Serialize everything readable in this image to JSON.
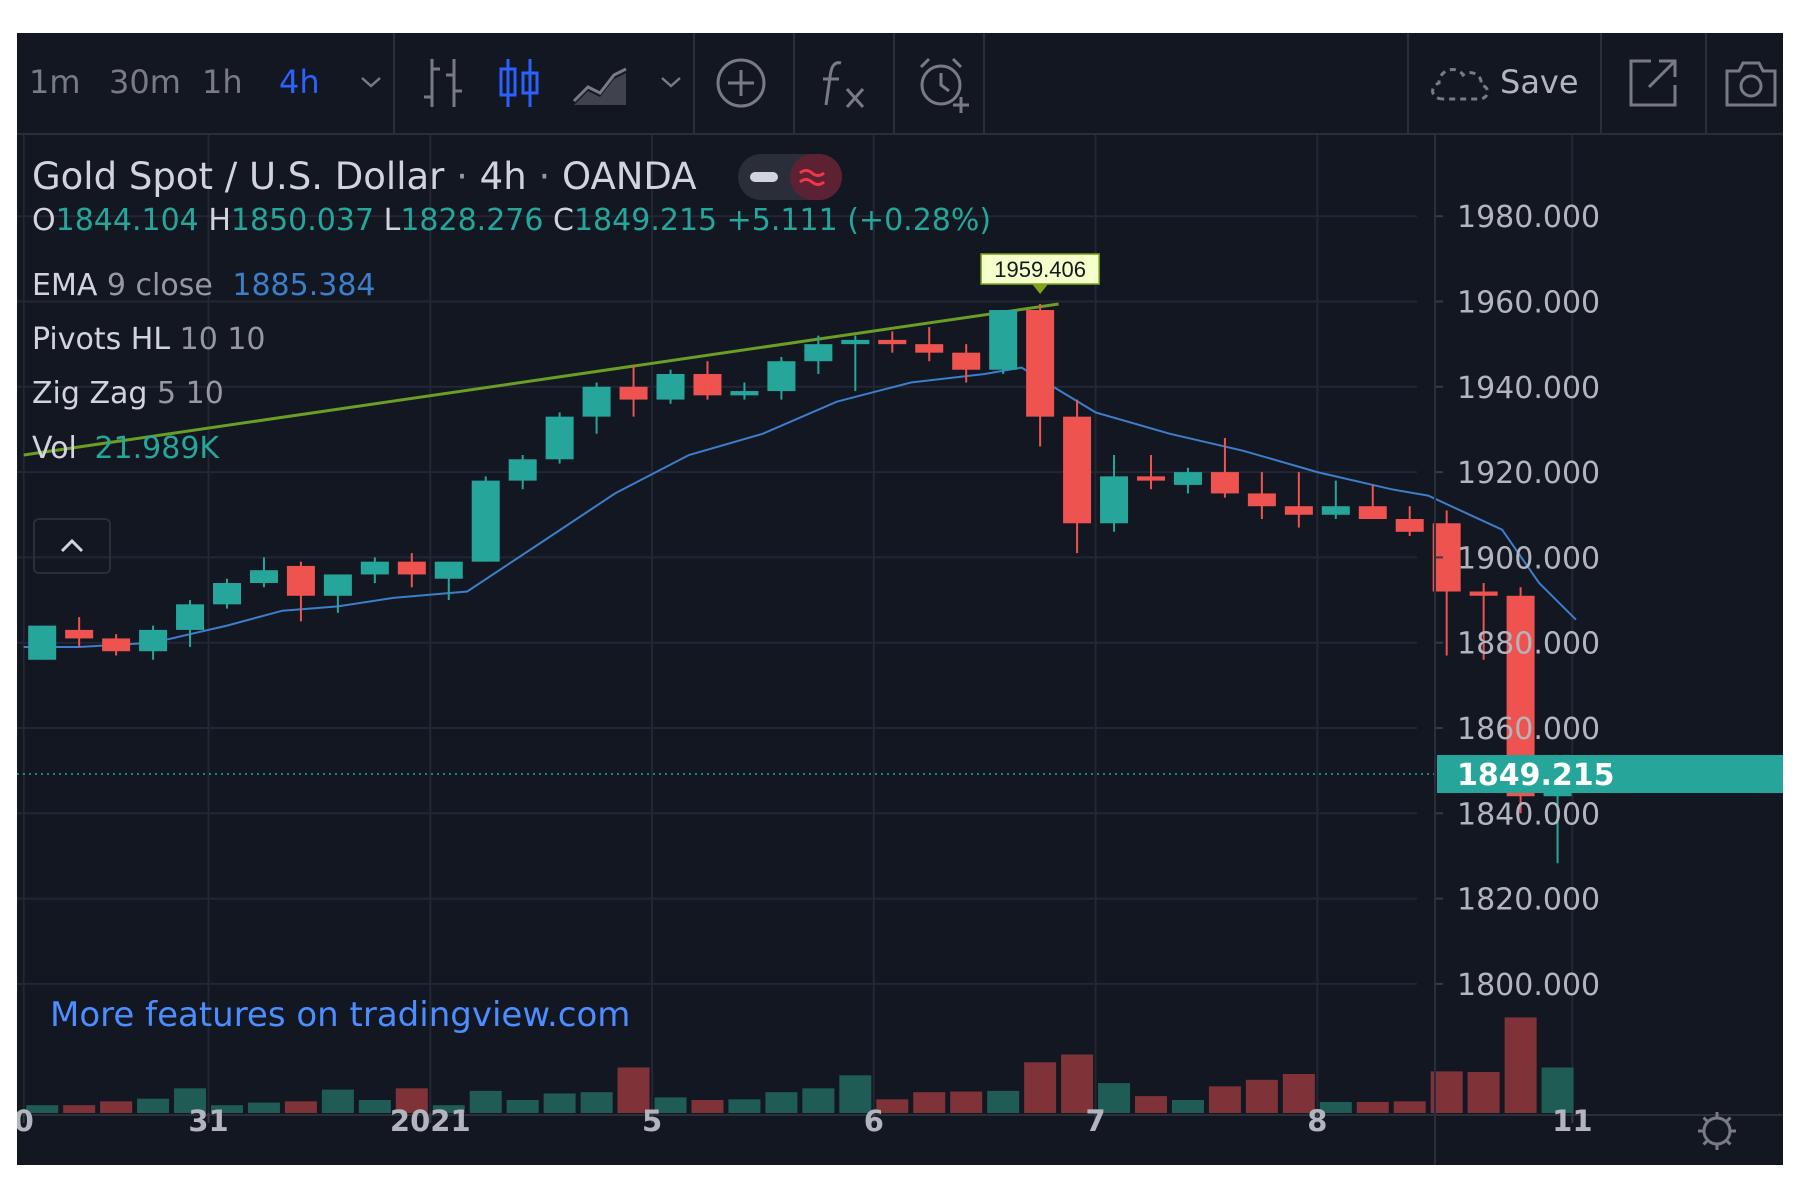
{
  "toolbar": {
    "intervals": [
      "1m",
      "30m",
      "1h",
      "4h"
    ],
    "active_interval": "4h",
    "save_label": "Save"
  },
  "symbol": {
    "name": "Gold Spot / U.S. Dollar",
    "interval": "4h",
    "exchange": "OANDA",
    "sep": "·"
  },
  "ohlc": {
    "o_label": "O",
    "o": "1844.104",
    "h_label": "H",
    "h": "1850.037",
    "l_label": "L",
    "l": "1828.276",
    "c_label": "C",
    "c": "1849.215",
    "change": "+5.111 (+0.28%)"
  },
  "indicators": {
    "ema": {
      "name": "EMA",
      "params": "9 close",
      "value": "1885.384"
    },
    "pivots": {
      "name": "Pivots HL",
      "params": "10 10"
    },
    "zigzag": {
      "name": "Zig Zag",
      "params": "5 10"
    },
    "vol": {
      "name": "Vol",
      "value": "21.989K"
    }
  },
  "promo_link": "More features on tradingview.com",
  "colors": {
    "background": "#131722",
    "grid": "#232734",
    "up": "#26a69a",
    "down": "#ef5350",
    "vol_up": "#1e5c55",
    "vol_down": "#7f3338",
    "ema": "#3c7ec9",
    "trendline": "#6a9e25",
    "text": "#d1d4dc",
    "muted": "#787b86",
    "accent": "#2962ff"
  },
  "chart_data": {
    "type": "candlestick",
    "ylim": [
      1800,
      1985
    ],
    "y_ticks": [
      "1800.000",
      "1820.000",
      "1840.000",
      "1860.000",
      "1880.000",
      "1900.000",
      "1920.000",
      "1940.000",
      "1960.000",
      "1980.000"
    ],
    "x_ticks": [
      {
        "label": "0",
        "bar": -0.5
      },
      {
        "label": "31",
        "bar": 4.5
      },
      {
        "label": "2021",
        "bar": 10.5
      },
      {
        "label": "5",
        "bar": 16.5
      },
      {
        "label": "6",
        "bar": 22.5
      },
      {
        "label": "7",
        "bar": 28.5
      },
      {
        "label": "8",
        "bar": 34.5
      },
      {
        "label": "11",
        "bar": 41.4
      }
    ],
    "candles": [
      {
        "o": 1876,
        "h": 1884,
        "l": 1876,
        "c": 1884
      },
      {
        "o": 1883,
        "h": 1886,
        "l": 1879,
        "c": 1881
      },
      {
        "o": 1881,
        "h": 1882,
        "l": 1877,
        "c": 1878
      },
      {
        "o": 1878,
        "h": 1884,
        "l": 1876,
        "c": 1883
      },
      {
        "o": 1883,
        "h": 1890,
        "l": 1879,
        "c": 1889
      },
      {
        "o": 1889,
        "h": 1895,
        "l": 1888,
        "c": 1894
      },
      {
        "o": 1894,
        "h": 1900,
        "l": 1893,
        "c": 1897
      },
      {
        "o": 1898,
        "h": 1899,
        "l": 1885,
        "c": 1891
      },
      {
        "o": 1891,
        "h": 1896,
        "l": 1887,
        "c": 1896
      },
      {
        "o": 1896,
        "h": 1900,
        "l": 1894,
        "c": 1899
      },
      {
        "o": 1899,
        "h": 1901,
        "l": 1893,
        "c": 1896
      },
      {
        "o": 1895,
        "h": 1898,
        "l": 1890,
        "c": 1899
      },
      {
        "o": 1899,
        "h": 1919,
        "l": 1899,
        "c": 1918
      },
      {
        "o": 1918,
        "h": 1924,
        "l": 1916,
        "c": 1923
      },
      {
        "o": 1923,
        "h": 1934,
        "l": 1922,
        "c": 1933
      },
      {
        "o": 1933,
        "h": 1941,
        "l": 1929,
        "c": 1940
      },
      {
        "o": 1940,
        "h": 1945,
        "l": 1933,
        "c": 1937
      },
      {
        "o": 1937,
        "h": 1944,
        "l": 1936,
        "c": 1943
      },
      {
        "o": 1943,
        "h": 1946,
        "l": 1937,
        "c": 1938
      },
      {
        "o": 1938,
        "h": 1941,
        "l": 1937,
        "c": 1939
      },
      {
        "o": 1939,
        "h": 1947,
        "l": 1937,
        "c": 1946
      },
      {
        "o": 1946,
        "h": 1952,
        "l": 1943,
        "c": 1950
      },
      {
        "o": 1950,
        "h": 1952,
        "l": 1939,
        "c": 1951
      },
      {
        "o": 1951,
        "h": 1953,
        "l": 1948,
        "c": 1950
      },
      {
        "o": 1950,
        "h": 1954,
        "l": 1946,
        "c": 1948
      },
      {
        "o": 1948,
        "h": 1950,
        "l": 1941,
        "c": 1944
      },
      {
        "o": 1944,
        "h": 1958,
        "l": 1943,
        "c": 1958
      },
      {
        "o": 1958,
        "h": 1959.406,
        "l": 1926,
        "c": 1933
      },
      {
        "o": 1933,
        "h": 1937,
        "l": 1901,
        "c": 1908
      },
      {
        "o": 1908,
        "h": 1924,
        "l": 1906,
        "c": 1919
      },
      {
        "o": 1919,
        "h": 1924,
        "l": 1916,
        "c": 1918
      },
      {
        "o": 1917,
        "h": 1921,
        "l": 1915,
        "c": 1920
      },
      {
        "o": 1920,
        "h": 1928,
        "l": 1914,
        "c": 1915
      },
      {
        "o": 1915,
        "h": 1920,
        "l": 1909,
        "c": 1912
      },
      {
        "o": 1912,
        "h": 1920,
        "l": 1907,
        "c": 1910
      },
      {
        "o": 1910,
        "h": 1918,
        "l": 1909,
        "c": 1912
      },
      {
        "o": 1912,
        "h": 1917,
        "l": 1909,
        "c": 1909
      },
      {
        "o": 1909,
        "h": 1912,
        "l": 1905,
        "c": 1906
      },
      {
        "o": 1908,
        "h": 1911,
        "l": 1877,
        "c": 1892
      },
      {
        "o": 1892,
        "h": 1894,
        "l": 1876,
        "c": 1891
      },
      {
        "o": 1891,
        "h": 1893,
        "l": 1840,
        "c": 1844
      },
      {
        "o": 1844,
        "h": 1850.037,
        "l": 1828.276,
        "c": 1849.215
      }
    ],
    "volume_rel": [
      0.12,
      0.12,
      0.18,
      0.22,
      0.38,
      0.12,
      0.16,
      0.18,
      0.36,
      0.2,
      0.38,
      0.12,
      0.34,
      0.2,
      0.3,
      0.32,
      0.7,
      0.24,
      0.2,
      0.21,
      0.32,
      0.38,
      0.58,
      0.21,
      0.32,
      0.33,
      0.34,
      0.78,
      0.9,
      0.46,
      0.26,
      0.2,
      0.41,
      0.51,
      0.6,
      0.17,
      0.17,
      0.18,
      0.64,
      0.63,
      1.47,
      0.7
    ],
    "ema": [
      {
        "bar": -0.5,
        "v": 1879
      },
      {
        "bar": 1,
        "v": 1879
      },
      {
        "bar": 3,
        "v": 1880
      },
      {
        "bar": 5,
        "v": 1884
      },
      {
        "bar": 6.5,
        "v": 1887.5
      },
      {
        "bar": 8,
        "v": 1888.5
      },
      {
        "bar": 9.5,
        "v": 1890.5
      },
      {
        "bar": 11.5,
        "v": 1892
      },
      {
        "bar": 13.5,
        "v": 1903.5
      },
      {
        "bar": 15.5,
        "v": 1915
      },
      {
        "bar": 17.5,
        "v": 1924
      },
      {
        "bar": 19.5,
        "v": 1929
      },
      {
        "bar": 21.5,
        "v": 1936.5
      },
      {
        "bar": 23.5,
        "v": 1941
      },
      {
        "bar": 25.5,
        "v": 1943
      },
      {
        "bar": 26.5,
        "v": 1944.5
      },
      {
        "bar": 28.5,
        "v": 1934
      },
      {
        "bar": 30.5,
        "v": 1929
      },
      {
        "bar": 32.5,
        "v": 1925
      },
      {
        "bar": 34.5,
        "v": 1920
      },
      {
        "bar": 36.5,
        "v": 1916
      },
      {
        "bar": 37.5,
        "v": 1914.5
      },
      {
        "bar": 39.5,
        "v": 1906.5
      },
      {
        "bar": 40.5,
        "v": 1894
      },
      {
        "bar": 41.5,
        "v": 1885.384
      }
    ],
    "trendline": [
      {
        "bar": -0.5,
        "v": 1924
      },
      {
        "bar": 27.5,
        "v": 1959.406
      }
    ],
    "high_marker": {
      "bar": 27,
      "label": "1959.406"
    },
    "last_price": {
      "label": "1849.215",
      "v": 1849.215
    }
  }
}
